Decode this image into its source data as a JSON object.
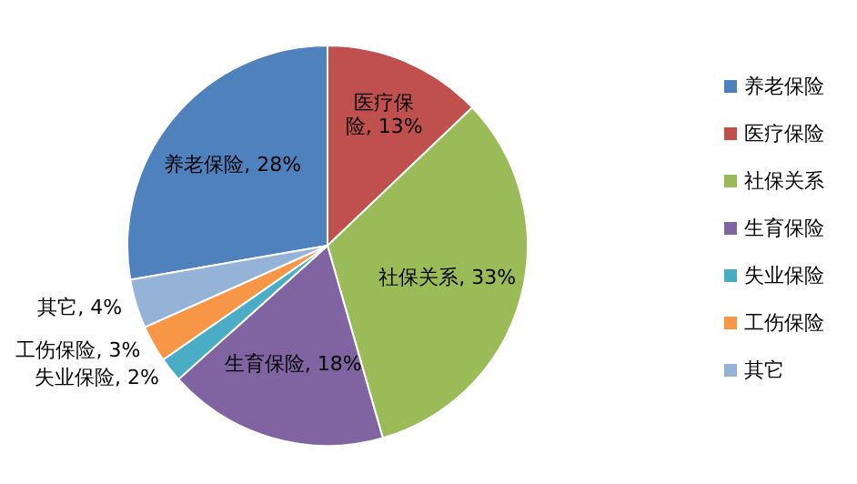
{
  "chart_data": {
    "type": "pie",
    "categories": [
      "养老保险",
      "医疗保险",
      "社保关系",
      "生育保险",
      "失业保险",
      "工伤保险",
      "其它"
    ],
    "values": [
      28,
      13,
      33,
      18,
      2,
      3,
      4
    ],
    "colors": [
      "#4f81bd",
      "#c0504d",
      "#9bbb59",
      "#8064a2",
      "#4bacc6",
      "#f79646",
      "#95b3d7"
    ],
    "value_labels": [
      "养老保险, 28%",
      "医疗保险, 13%",
      "社保关系, 33%",
      "生育保险, 18%",
      "失业保险, 2%",
      "工伤保险, 3%",
      "其它, 4%"
    ],
    "legend": "right"
  }
}
